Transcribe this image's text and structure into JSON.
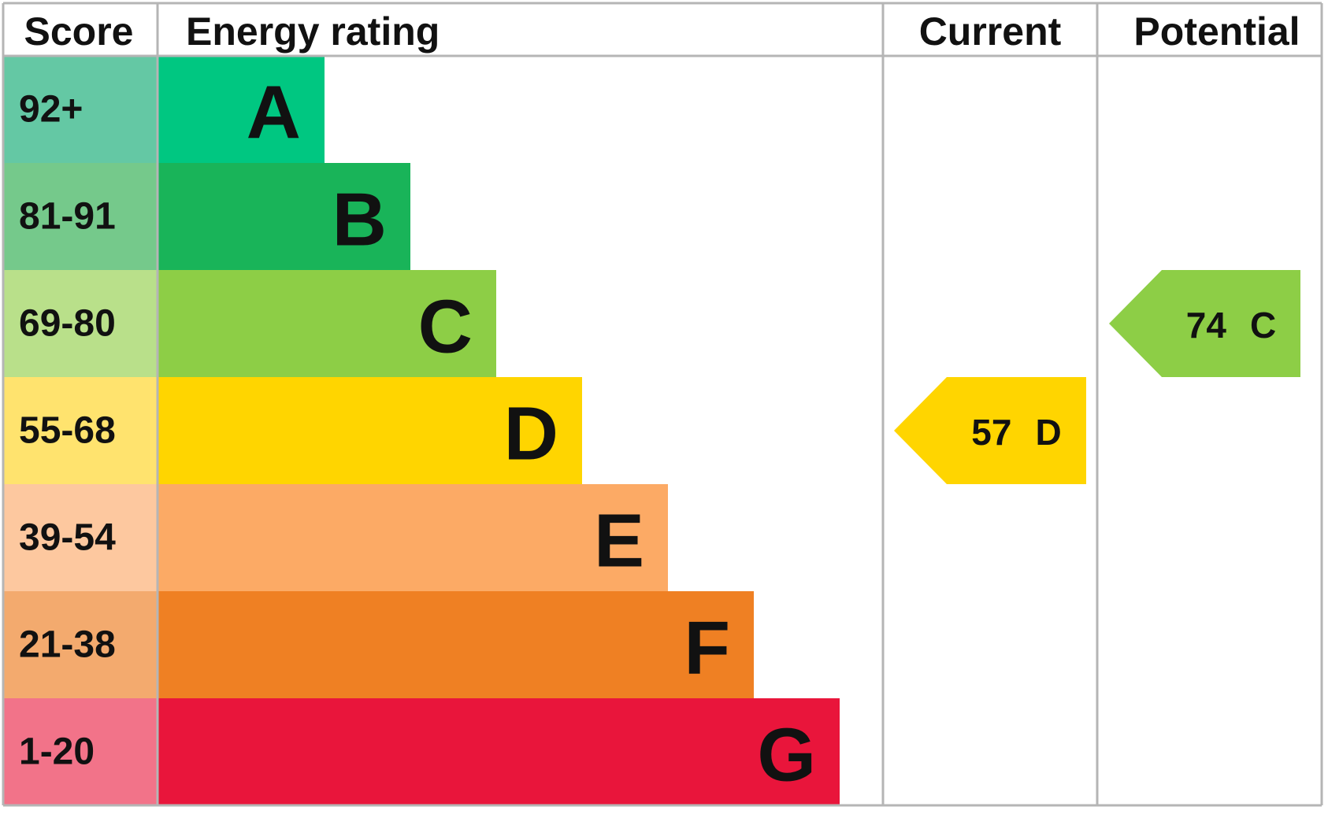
{
  "header": {
    "score": "Score",
    "energy_rating": "Energy rating",
    "current": "Current",
    "potential": "Potential"
  },
  "bands": [
    {
      "score": "92+",
      "letter": "A",
      "color": "#00c781",
      "score_color": "#64c8a4"
    },
    {
      "score": "81-91",
      "letter": "B",
      "color": "#19b459",
      "score_color": "#75c98b"
    },
    {
      "score": "69-80",
      "letter": "C",
      "color": "#8dce46",
      "score_color": "#b9e08a"
    },
    {
      "score": "55-68",
      "letter": "D",
      "color": "#ffd500",
      "score_color": "#ffe36e"
    },
    {
      "score": "39-54",
      "letter": "E",
      "color": "#fcaa65",
      "score_color": "#fdc89f"
    },
    {
      "score": "21-38",
      "letter": "F",
      "color": "#ef8023",
      "score_color": "#f3aa6e"
    },
    {
      "score": "1-20",
      "letter": "G",
      "color": "#e9153b",
      "score_color": "#f27389"
    }
  ],
  "current": {
    "value": 57,
    "letter": "D"
  },
  "potential": {
    "value": 74,
    "letter": "C"
  }
}
